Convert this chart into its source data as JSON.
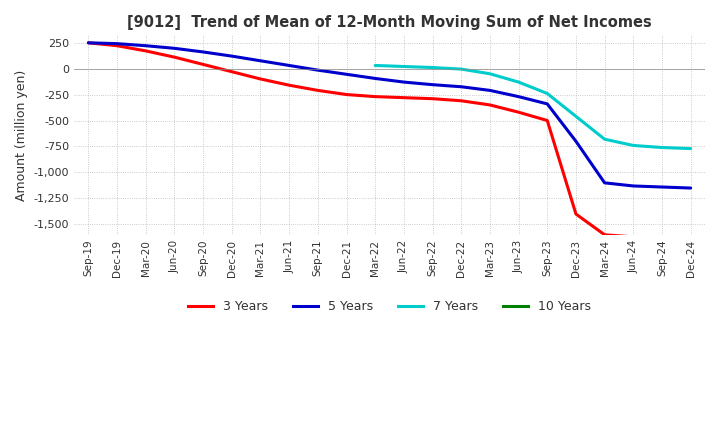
{
  "title": "[9012]  Trend of Mean of 12-Month Moving Sum of Net Incomes",
  "ylabel": "Amount (million yen)",
  "background_color": "#ffffff",
  "grid_color": "#aaaaaa",
  "ylim": [
    -1600,
    320
  ],
  "yticks": [
    250,
    0,
    -250,
    -500,
    -750,
    -1000,
    -1250,
    -1500
  ],
  "legend": [
    "3 Years",
    "5 Years",
    "7 Years",
    "10 Years"
  ],
  "line_colors": [
    "#ff0000",
    "#0000cc",
    "#00cccc",
    "#008000"
  ],
  "x_labels": [
    "Sep-19",
    "Dec-19",
    "Mar-20",
    "Jun-20",
    "Sep-20",
    "Dec-20",
    "Mar-21",
    "Jun-21",
    "Sep-21",
    "Dec-21",
    "Mar-22",
    "Jun-22",
    "Sep-22",
    "Dec-22",
    "Mar-23",
    "Jun-23",
    "Sep-23",
    "Dec-23",
    "Mar-24",
    "Jun-24",
    "Sep-24",
    "Dec-24"
  ],
  "series_3y": [
    248,
    220,
    170,
    110,
    40,
    -30,
    -100,
    -160,
    -210,
    -250,
    -270,
    -280,
    -290,
    -310,
    -350,
    -420,
    -500,
    -1400,
    -1600,
    -1620,
    -1630,
    -1630
  ],
  "series_5y": [
    248,
    240,
    220,
    195,
    160,
    120,
    75,
    30,
    -15,
    -55,
    -95,
    -130,
    -155,
    -175,
    -210,
    -270,
    -340,
    -700,
    -1100,
    -1130,
    -1140,
    -1150
  ],
  "series_7y": [
    null,
    null,
    null,
    null,
    null,
    null,
    null,
    null,
    null,
    null,
    30,
    20,
    10,
    -5,
    -50,
    -130,
    -240,
    -460,
    -680,
    -740,
    -760,
    -770
  ],
  "series_10y": [
    null,
    null,
    null,
    null,
    null,
    null,
    null,
    null,
    null,
    null,
    null,
    null,
    null,
    null,
    null,
    null,
    null,
    null,
    null,
    null,
    null,
    null
  ]
}
